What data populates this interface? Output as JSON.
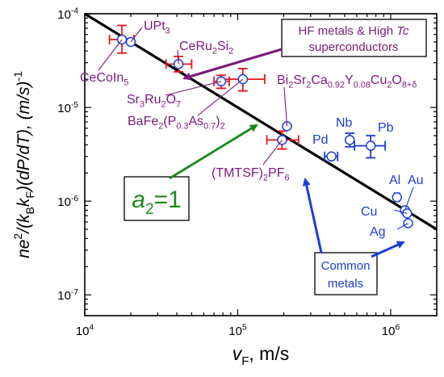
{
  "chart_data": {
    "type": "scatter",
    "xscale": "log",
    "yscale": "log",
    "xlim": [
      10000,
      2000000
    ],
    "ylim": [
      6e-08,
      0.0001
    ],
    "xlabel": {
      "var": "v",
      "sub": "F",
      "rest": ", m/s"
    },
    "ylabel_parts": [
      {
        "t": "ne"
      },
      {
        "t": "2",
        "sup": true
      },
      {
        "t": "/(k"
      },
      {
        "t": "B",
        "sub": true
      },
      {
        "t": "k"
      },
      {
        "t": "F",
        "sub": true
      },
      {
        "t": ")(dP/dT), (m/s)"
      },
      {
        "t": "-1",
        "sup": true
      }
    ],
    "xticks": [
      {
        "value": 10000,
        "base": "10",
        "exp": "4"
      },
      {
        "value": 100000,
        "base": "10",
        "exp": "5"
      },
      {
        "value": 1000000,
        "base": "10",
        "exp": "6"
      }
    ],
    "yticks": [
      {
        "value": 1e-07,
        "base": "10",
        "exp": "-7"
      },
      {
        "value": 1e-06,
        "base": "10",
        "exp": "-6"
      },
      {
        "value": 1e-05,
        "base": "10",
        "exp": "-5"
      },
      {
        "value": 0.0001,
        "base": "10",
        "exp": "-4"
      }
    ],
    "line": {
      "x": [
        10000,
        2000000
      ],
      "y": [
        0.0001,
        5e-07
      ]
    },
    "series": [
      {
        "group": "hf",
        "color": "#e8141b",
        "points": [
          {
            "label": "CeCoIn5",
            "x": 17500,
            "y": 5.3e-05,
            "xerr": [
              14500,
              21000
            ],
            "yerr": [
              3.8e-05,
              7.5e-05
            ]
          },
          {
            "label": "UPt3",
            "x": 20000,
            "y": 5e-05
          },
          {
            "label": "CeRu2Si2",
            "x": 41000,
            "y": 2.9e-05,
            "xerr": [
              34000,
              50000
            ],
            "yerr": [
              2.4e-05,
              3.5e-05
            ]
          },
          {
            "label": "Sr3Ru2O7",
            "x": 78000,
            "y": 1.9e-05,
            "xerr": [
              70000,
              88000
            ],
            "yerr": [
              1.6e-05,
              2.2e-05
            ]
          },
          {
            "label": "BaFe2(P0.3As0.7)2",
            "x": 108000,
            "y": 2e-05,
            "xerr": [
              78000,
              150000
            ],
            "yerr": [
              1.5e-05,
              2.6e-05
            ]
          },
          {
            "label": "TMTSF2PF6",
            "x": 195000,
            "y": 4.5e-06,
            "xerr": [
              155000,
              250000
            ],
            "yerr": [
              3.6e-06,
              5.6e-06
            ]
          },
          {
            "label": "BSCCO",
            "x": 210000,
            "y": 6.3e-06
          }
        ]
      },
      {
        "group": "metals",
        "color": "#1a3fd6",
        "points": [
          {
            "label": "Pd",
            "x": 410000,
            "y": 3e-06,
            "xerr": [
              370000,
              450000
            ]
          },
          {
            "label": "Nb",
            "x": 540000,
            "y": 4.5e-06,
            "yerr": [
              3.8e-06,
              5.3e-06
            ]
          },
          {
            "label": "Pb",
            "x": 740000,
            "y": 3.9e-06,
            "xerr": [
              580000,
              920000
            ],
            "yerr": [
              2.9e-06,
              5e-06
            ]
          },
          {
            "label": "Al",
            "x": 1100000,
            "y": 1.1e-06,
            "xerr": [
              1060000,
              1140000
            ]
          },
          {
            "label": "Au",
            "x": 1240000,
            "y": 8e-07
          },
          {
            "label": "Cu",
            "x": 1280000,
            "y": 7.4e-07
          },
          {
            "label": "Ag",
            "x": 1300000,
            "y": 5.8e-07
          }
        ]
      }
    ],
    "labels": [
      {
        "name": "label-ceru2si2",
        "color": "#7b1b7b",
        "parts": [
          {
            "t": "CeRu"
          },
          {
            "t": "2",
            "sub": true
          },
          {
            "t": "Si"
          },
          {
            "t": "2",
            "sub": true
          }
        ]
      },
      {
        "name": "label-upt3",
        "color": "#7b1b7b",
        "parts": [
          {
            "t": "UPt"
          },
          {
            "t": "3",
            "sub": true
          }
        ]
      },
      {
        "name": "label-cecoin5",
        "color": "#7b1b7b",
        "parts": [
          {
            "t": "CeCoIn"
          },
          {
            "t": "5",
            "sub": true
          }
        ]
      },
      {
        "name": "label-sr3ru2o7",
        "color": "#7b1b7b",
        "parts": [
          {
            "t": "Sr"
          },
          {
            "t": "3",
            "sub": true
          },
          {
            "t": "Ru"
          },
          {
            "t": "2",
            "sub": true
          },
          {
            "t": "O"
          },
          {
            "t": "7",
            "sub": true
          }
        ]
      },
      {
        "name": "label-bafe2pas2",
        "color": "#7b1b7b",
        "parts": [
          {
            "t": "BaFe"
          },
          {
            "t": "2",
            "sub": true
          },
          {
            "t": "(P"
          },
          {
            "t": "0.3",
            "sub": true
          },
          {
            "t": "As"
          },
          {
            "t": "0.7",
            "sub": true
          },
          {
            "t": ")"
          },
          {
            "t": "2",
            "sub": true
          }
        ]
      },
      {
        "name": "label-bscco",
        "color": "#7b1b7b",
        "parts": [
          {
            "t": "Bi"
          },
          {
            "t": "2",
            "sub": true
          },
          {
            "t": "Sr"
          },
          {
            "t": "2",
            "sub": true
          },
          {
            "t": "Ca"
          },
          {
            "t": "0.92",
            "sub": true
          },
          {
            "t": "Y"
          },
          {
            "t": "0.08",
            "sub": true
          },
          {
            "t": "Cu"
          },
          {
            "t": "2",
            "sub": true
          },
          {
            "t": "O"
          },
          {
            "t": "8+δ",
            "sub": true
          }
        ]
      },
      {
        "name": "label-tmtsf2pf6",
        "color": "#7b1b7b",
        "parts": [
          {
            "t": "(TMTSF)"
          },
          {
            "t": "2",
            "sub": true
          },
          {
            "t": "PF"
          },
          {
            "t": "6",
            "sub": true
          }
        ]
      },
      {
        "name": "label-pd",
        "color": "#1a3fd6",
        "parts": [
          {
            "t": "Pd"
          }
        ]
      },
      {
        "name": "label-nb",
        "color": "#1a3fd6",
        "parts": [
          {
            "t": "Nb"
          }
        ]
      },
      {
        "name": "label-pb",
        "color": "#1a3fd6",
        "parts": [
          {
            "t": "Pb"
          }
        ]
      },
      {
        "name": "label-al",
        "color": "#1a3fd6",
        "parts": [
          {
            "t": "Al"
          }
        ]
      },
      {
        "name": "label-au",
        "color": "#1a3fd6",
        "parts": [
          {
            "t": "Au"
          }
        ]
      },
      {
        "name": "label-cu",
        "color": "#1a3fd6",
        "parts": [
          {
            "t": "Cu"
          }
        ]
      },
      {
        "name": "label-ag",
        "color": "#1a3fd6",
        "parts": [
          {
            "t": "Ag"
          }
        ]
      }
    ],
    "annotations": {
      "hf_box": {
        "line1": "HF metals & High ",
        "line1_italic": "Tc",
        "line2": "superconductors",
        "color": "#7b1b7b"
      },
      "metals_box": {
        "line1": "Common",
        "line2": "metals",
        "color": "#1a3fd6"
      },
      "slope_box": {
        "var": "a",
        "sub": "2",
        "rest": "=1",
        "color": "#1a8a1a"
      }
    }
  }
}
